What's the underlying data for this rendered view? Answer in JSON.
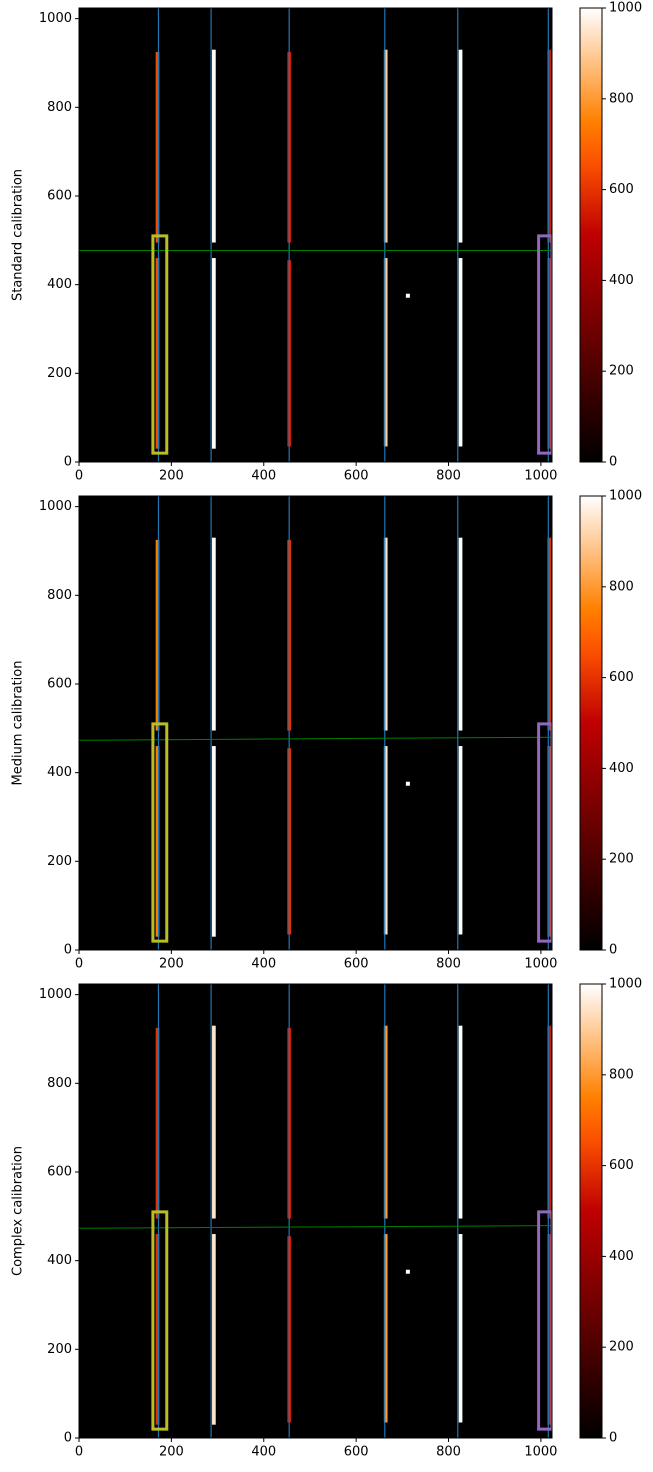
{
  "chart_data": [
    {
      "type": "image",
      "ylabel": "Standard calibration",
      "xlim": [
        0,
        1024
      ],
      "ylim": [
        0,
        1024
      ],
      "xticks": [
        0,
        200,
        400,
        600,
        800,
        1000
      ],
      "yticks": [
        0,
        200,
        400,
        600,
        800,
        1000
      ],
      "clim": [
        0,
        1000
      ],
      "cticks": [
        0,
        200,
        400,
        600,
        800,
        1000
      ],
      "colormap": "gist_heat",
      "traces": [
        {
          "x": 170,
          "y": [
            [
              30,
              460
            ],
            [
              495,
              925
            ]
          ],
          "level": 650
        },
        {
          "x": 292,
          "y": [
            [
              30,
              460
            ],
            [
              495,
              930
            ]
          ],
          "level": 1000
        },
        {
          "x": 455,
          "y": [
            [
              35,
              455
            ],
            [
              495,
              925
            ]
          ],
          "level": 550
        },
        {
          "x": 664,
          "y": [
            [
              35,
              460
            ],
            [
              495,
              930
            ]
          ],
          "level": 900
        },
        {
          "x": 826,
          "y": [
            [
              35,
              460
            ],
            [
              495,
              930
            ]
          ],
          "level": 1000
        },
        {
          "x": 1018,
          "y": [
            [
              30,
              460
            ],
            [
              495,
              930
            ]
          ],
          "level": 550
        }
      ],
      "column_lines": {
        "color": "#1f77b4",
        "x": [
          172,
          286,
          455,
          662,
          820,
          1016
        ]
      },
      "row_line": {
        "color": "#008000",
        "x": [
          0,
          1024
        ],
        "y": [
          477,
          477
        ]
      },
      "boxes": [
        {
          "color": "#bcbd22",
          "x": [
            160,
            190
          ],
          "y": [
            20,
            510
          ]
        },
        {
          "color": "#9467bd",
          "x": [
            995,
            1024
          ],
          "y": [
            20,
            510
          ]
        }
      ],
      "spot": {
        "x": 712,
        "y": 375,
        "level": 1000
      }
    },
    {
      "type": "image",
      "ylabel": "Medium calibration",
      "xlim": [
        0,
        1024
      ],
      "ylim": [
        0,
        1024
      ],
      "xticks": [
        0,
        200,
        400,
        600,
        800,
        1000
      ],
      "yticks": [
        0,
        200,
        400,
        600,
        800,
        1000
      ],
      "clim": [
        0,
        1000
      ],
      "cticks": [
        0,
        200,
        400,
        600,
        800,
        1000
      ],
      "colormap": "gist_heat",
      "traces": [
        {
          "x": 170,
          "y": [
            [
              30,
              460
            ],
            [
              495,
              925
            ]
          ],
          "level": 750
        },
        {
          "x": 292,
          "y": [
            [
              30,
              460
            ],
            [
              495,
              930
            ]
          ],
          "level": 1000
        },
        {
          "x": 455,
          "y": [
            [
              35,
              455
            ],
            [
              495,
              925
            ]
          ],
          "level": 600
        },
        {
          "x": 664,
          "y": [
            [
              35,
              460
            ],
            [
              495,
              930
            ]
          ],
          "level": 950
        },
        {
          "x": 826,
          "y": [
            [
              35,
              460
            ],
            [
              495,
              930
            ]
          ],
          "level": 1000
        },
        {
          "x": 1018,
          "y": [
            [
              30,
              460
            ],
            [
              495,
              930
            ]
          ],
          "level": 600
        }
      ],
      "column_lines": {
        "color": "#1f77b4",
        "x": [
          172,
          286,
          455,
          662,
          820,
          1016
        ]
      },
      "row_line": {
        "color": "#008000",
        "x": [
          0,
          1024
        ],
        "y": [
          473,
          480
        ]
      },
      "boxes": [
        {
          "color": "#bcbd22",
          "x": [
            160,
            190
          ],
          "y": [
            20,
            510
          ]
        },
        {
          "color": "#9467bd",
          "x": [
            995,
            1024
          ],
          "y": [
            20,
            510
          ]
        }
      ],
      "spot": {
        "x": 712,
        "y": 375,
        "level": 1000
      }
    },
    {
      "type": "image",
      "ylabel": "Complex calibration",
      "xlim": [
        0,
        1024
      ],
      "ylim": [
        0,
        1024
      ],
      "xticks": [
        0,
        200,
        400,
        600,
        800,
        1000
      ],
      "yticks": [
        0,
        200,
        400,
        600,
        800,
        1000
      ],
      "clim": [
        0,
        1000
      ],
      "cticks": [
        0,
        200,
        400,
        600,
        800,
        1000
      ],
      "colormap": "gist_heat",
      "traces": [
        {
          "x": 170,
          "y": [
            [
              30,
              460
            ],
            [
              495,
              925
            ]
          ],
          "level": 600
        },
        {
          "x": 292,
          "y": [
            [
              30,
              460
            ],
            [
              495,
              930
            ]
          ],
          "level": 950
        },
        {
          "x": 455,
          "y": [
            [
              35,
              455
            ],
            [
              495,
              925
            ]
          ],
          "level": 550
        },
        {
          "x": 664,
          "y": [
            [
              35,
              460
            ],
            [
              495,
              930
            ]
          ],
          "level": 800
        },
        {
          "x": 826,
          "y": [
            [
              35,
              460
            ],
            [
              495,
              930
            ]
          ],
          "level": 1000
        },
        {
          "x": 1018,
          "y": [
            [
              30,
              460
            ],
            [
              495,
              930
            ]
          ],
          "level": 550
        }
      ],
      "column_lines": {
        "color": "#1f77b4",
        "x": [
          172,
          286,
          455,
          662,
          820,
          1016
        ]
      },
      "row_line": {
        "color": "#008000",
        "x": [
          0,
          1024
        ],
        "y": [
          473,
          479
        ]
      },
      "boxes": [
        {
          "color": "#bcbd22",
          "x": [
            160,
            190
          ],
          "y": [
            20,
            510
          ]
        },
        {
          "color": "#9467bd",
          "x": [
            995,
            1024
          ],
          "y": [
            20,
            510
          ]
        }
      ],
      "spot": {
        "x": 712,
        "y": 375,
        "level": 1000
      }
    }
  ]
}
